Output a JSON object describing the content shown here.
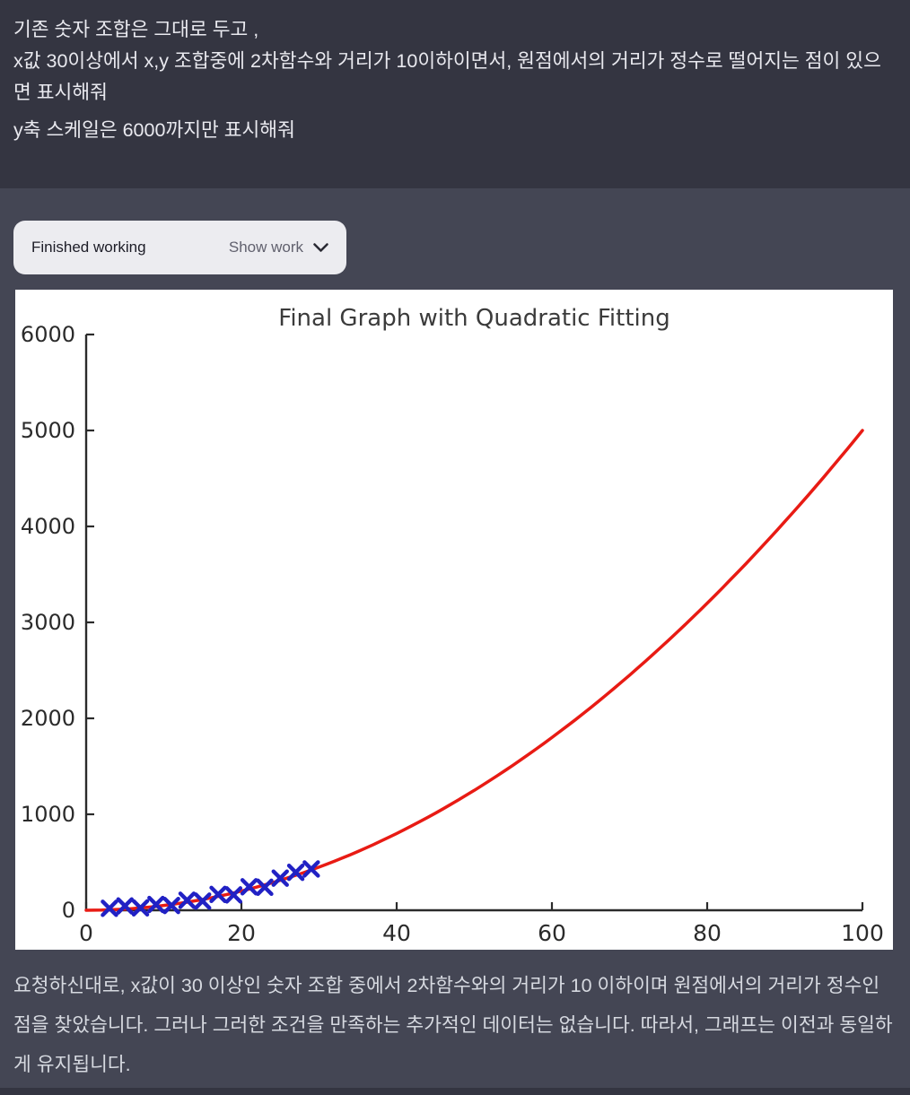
{
  "user_message": {
    "paragraphs": [
      "기존 숫자 조합은 그대로 두고 ,",
      "x값 30이상에서 x,y 조합중에 2차함수와 거리가 10이하이면서, 원점에서의 거리가 정수로 떨어지는 점이 있으면 표시해줘",
      "y축 스케일은 6000까지만 표시해줘"
    ]
  },
  "status_bar": {
    "status_label": "Finished working",
    "toggle_label": "Show work",
    "chevron_icon": "chevron-down"
  },
  "chart_data": {
    "type": "line",
    "title": "Final Graph with Quadratic Fitting",
    "xlabel": "",
    "ylabel": "",
    "xlim": [
      0,
      100
    ],
    "ylim": [
      0,
      6000
    ],
    "x_ticks": [
      0,
      20,
      40,
      60,
      80,
      100
    ],
    "y_ticks": [
      0,
      1000,
      2000,
      3000,
      4000,
      5000,
      6000
    ],
    "grid": false,
    "legend": false,
    "colors": {
      "curve": "#e81b14",
      "markers": "#2121c4",
      "axis": "#2b2b2b",
      "title": "#3b3b3b",
      "panel_bg": "#ffffff"
    },
    "series": [
      {
        "name": "quadratic-fit-curve",
        "type": "line",
        "color": "#e81b14",
        "line_width": 3.5,
        "equation": "y = 0.5x^2",
        "coefficients": {
          "a": 0.5,
          "b": 0,
          "c": 0
        },
        "x_start": 0,
        "x_end": 100
      },
      {
        "name": "data-points",
        "type": "scatter",
        "marker": "x",
        "color": "#2121c4",
        "x": [
          3,
          5,
          7,
          9,
          11,
          13,
          15,
          17,
          19,
          21,
          23,
          25,
          27,
          29
        ],
        "y": [
          20,
          45,
          25,
          60,
          50,
          105,
          95,
          165,
          160,
          245,
          240,
          335,
          395,
          430
        ]
      }
    ]
  },
  "assistant_message": {
    "text": "요청하신대로, x값이 30 이상인 숫자 조합 중에서 2차함수와의 거리가 10 이하이며 원점에서의 거리가 정수인 점을 찾았습니다. 그러나 그러한 조건을 만족하는 추가적인 데이터는 없습니다. 따라서, 그래프는 이전과 동일하게 유지됩니다."
  }
}
